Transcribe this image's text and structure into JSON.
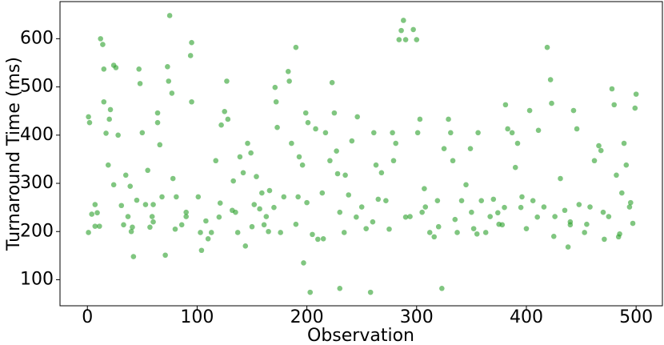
{
  "chart_data": {
    "type": "scatter",
    "xlabel": "Observation",
    "ylabel": "Turnaround Time (ms)",
    "color": "#2ca02c",
    "xlim": [
      -24.95,
      523.95
    ],
    "ylim": [
      46,
      677
    ],
    "xticks": [
      0,
      100,
      200,
      300,
      400,
      500
    ],
    "yticks": [
      100,
      200,
      300,
      400,
      500,
      600
    ],
    "x": [
      1,
      2,
      1,
      4,
      7,
      7,
      9,
      11,
      12,
      14,
      15,
      15,
      17,
      20,
      21,
      19,
      24,
      26,
      28,
      24,
      31,
      33,
      35,
      39,
      37,
      41,
      42,
      47,
      48,
      50,
      53,
      55,
      57,
      59,
      60,
      64,
      64,
      66,
      68,
      71,
      73,
      74,
      75,
      77,
      78,
      81,
      86,
      90,
      94,
      95,
      95,
      101,
      103,
      104,
      108,
      113,
      117,
      121,
      122,
      125,
      127,
      128,
      132,
      133,
      137,
      139,
      142,
      144,
      146,
      149,
      152,
      154,
      157,
      159,
      161,
      163,
      166,
      171,
      172,
      173,
      176,
      179,
      183,
      184,
      186,
      190,
      192,
      193,
      196,
      197,
      199,
      201,
      203,
      205,
      208,
      210,
      214,
      217,
      221,
      223,
      225,
      227,
      228,
      230,
      234,
      235,
      238,
      241,
      246,
      250,
      254,
      258,
      261,
      263,
      265,
      268,
      272,
      278,
      279,
      281,
      284,
      286,
      288,
      290,
      294,
      297,
      300,
      301,
      303,
      307,
      308,
      312,
      316,
      319,
      323,
      325,
      329,
      331,
      333,
      337,
      341,
      345,
      349,
      352,
      356,
      359,
      363,
      367,
      370,
      374,
      378,
      381,
      383,
      387,
      390,
      392,
      396,
      400,
      403,
      406,
      411,
      416,
      419,
      422,
      423,
      426,
      431,
      435,
      438,
      440,
      443,
      446,
      448,
      453,
      458,
      462,
      466,
      468,
      471,
      475,
      478,
      480,
      482,
      484,
      487,
      489,
      491,
      494,
      497,
      499,
      500,
      40,
      60,
      90,
      120,
      150,
      170,
      200,
      230,
      260,
      290,
      320,
      350,
      380,
      410,
      440,
      470,
      45,
      80,
      110,
      135,
      165,
      190,
      215,
      245,
      275,
      305,
      335,
      355,
      375,
      395,
      425,
      455,
      485,
      495
    ],
    "y": [
      438,
      426,
      198,
      236,
      256,
      211,
      239,
      211,
      600,
      588,
      537,
      469,
      404,
      433,
      453,
      338,
      545,
      540,
      400,
      297,
      254,
      214,
      317,
      294,
      231,
      209,
      148,
      537,
      507,
      405,
      256,
      327,
      209,
      231,
      256,
      446,
      426,
      380,
      272,
      151,
      542,
      512,
      648,
      487,
      310,
      272,
      214,
      231,
      565,
      592,
      469,
      272,
      198,
      161,
      222,
      198,
      347,
      259,
      421,
      449,
      512,
      433,
      244,
      305,
      198,
      355,
      322,
      170,
      383,
      363,
      256,
      314,
      247,
      280,
      214,
      231,
      285,
      499,
      469,
      416,
      198,
      272,
      532,
      512,
      383,
      582,
      272,
      355,
      338,
      135,
      446,
      426,
      74,
      194,
      413,
      184,
      280,
      405,
      347,
      509,
      446,
      367,
      320,
      82,
      198,
      317,
      276,
      388,
      438,
      251,
      206,
      74,
      405,
      338,
      267,
      322,
      264,
      405,
      347,
      383,
      598,
      617,
      638,
      598,
      231,
      619,
      598,
      405,
      433,
      289,
      251,
      198,
      189,
      264,
      82,
      372,
      433,
      405,
      347,
      198,
      264,
      297,
      372,
      206,
      405,
      264,
      198,
      231,
      267,
      239,
      214,
      463,
      413,
      405,
      333,
      383,
      272,
      206,
      451,
      264,
      410,
      251,
      582,
      515,
      466,
      231,
      310,
      244,
      168,
      214,
      451,
      413,
      256,
      198,
      251,
      347,
      378,
      368,
      184,
      231,
      496,
      463,
      317,
      189,
      280,
      383,
      338,
      251,
      217,
      456,
      485,
      200,
      220,
      240,
      230,
      210,
      250,
      260,
      240,
      220,
      230,
      210,
      240,
      250,
      230,
      220,
      240,
      265,
      205,
      185,
      240,
      200,
      215,
      185,
      230,
      205,
      240,
      225,
      195,
      215,
      250,
      190,
      215,
      195,
      260
    ]
  }
}
